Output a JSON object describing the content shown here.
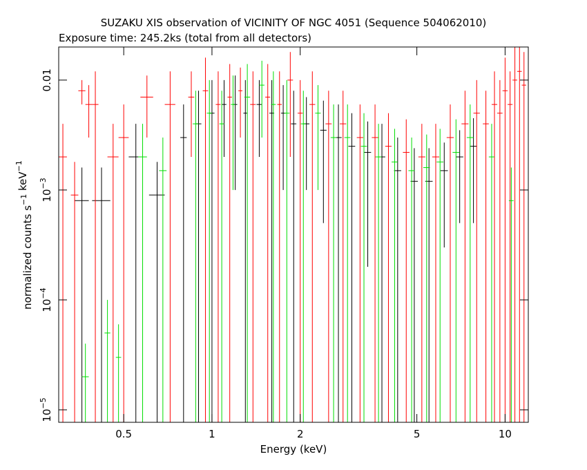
{
  "chart_data": {
    "type": "errorbar",
    "title": "SUZAKU XIS observation of VICINITY OF NGC 4051 (Sequence 504062010)",
    "subtitle": "Exposure time: 245.2ks (total from all detectors)",
    "xlabel": "Energy (keV)",
    "ylabel": [
      {
        "text": "normalized counts s",
        "sup": "−1"
      },
      {
        "text": " keV",
        "sup": "−1"
      }
    ],
    "log_x": true,
    "log_y": true,
    "xlim": [
      0.3,
      12
    ],
    "ylim": [
      7.7e-06,
      0.02
    ],
    "xticks": [
      0.5,
      1,
      2,
      5,
      10
    ],
    "yticks": [
      {
        "value": 0.01,
        "label": "0.01"
      },
      {
        "value": 0.001,
        "label": "10",
        "exponent": "−3"
      },
      {
        "value": 0.0001,
        "label": "10",
        "exponent": "−4"
      },
      {
        "value": 1e-05,
        "label": "10",
        "exponent": "−5"
      }
    ],
    "series": [
      {
        "color": "#000000",
        "x": [
          0.36,
          0.42,
          0.55,
          0.65,
          0.8,
          0.9,
          1.0,
          1.1,
          1.2,
          1.3,
          1.45,
          1.6,
          1.75,
          1.9,
          2.1,
          2.4,
          2.7,
          3.0,
          3.4,
          3.8,
          4.3,
          4.9,
          5.5,
          6.2,
          7.0,
          7.8
        ],
        "xerr": [
          0.02,
          0.03,
          0.03,
          0.04,
          0.02,
          0.02,
          0.02,
          0.02,
          0.02,
          0.02,
          0.03,
          0.03,
          0.03,
          0.04,
          0.05,
          0.06,
          0.07,
          0.08,
          0.09,
          0.1,
          0.12,
          0.14,
          0.16,
          0.18,
          0.2,
          0.22
        ],
        "values": [
          0.0008,
          0.0008,
          0.002,
          0.0009,
          0.003,
          0.004,
          0.005,
          0.006,
          0.006,
          0.005,
          0.006,
          0.005,
          0.005,
          0.004,
          0.004,
          0.0035,
          0.003,
          0.0025,
          0.0022,
          0.002,
          0.0015,
          0.0012,
          0.0012,
          0.0015,
          0.002,
          0.0025
        ],
        "errors": [
          0.0008,
          0.0008,
          0.002,
          0.0009,
          0.003,
          0.004,
          0.005,
          0.004,
          0.005,
          0.005,
          0.004,
          0.005,
          0.004,
          0.004,
          0.003,
          0.003,
          0.003,
          0.0025,
          0.002,
          0.002,
          0.0015,
          0.0012,
          0.0012,
          0.0012,
          0.0015,
          0.002
        ]
      },
      {
        "color": "#ff0000",
        "x": [
          0.31,
          0.34,
          0.36,
          0.38,
          0.4,
          0.46,
          0.5,
          0.6,
          0.72,
          0.85,
          0.95,
          1.05,
          1.15,
          1.25,
          1.38,
          1.55,
          1.7,
          1.85,
          2.0,
          2.2,
          2.5,
          2.8,
          3.2,
          3.6,
          4.0,
          4.6,
          5.2,
          5.8,
          6.5,
          7.3,
          8.0,
          8.6,
          9.2,
          9.6,
          10.0,
          10.4,
          10.8,
          11.2,
          11.6
        ],
        "xerr": [
          0.01,
          0.01,
          0.01,
          0.01,
          0.01,
          0.02,
          0.02,
          0.03,
          0.03,
          0.02,
          0.02,
          0.02,
          0.02,
          0.02,
          0.03,
          0.03,
          0.03,
          0.04,
          0.04,
          0.05,
          0.06,
          0.07,
          0.08,
          0.09,
          0.1,
          0.12,
          0.14,
          0.16,
          0.18,
          0.2,
          0.2,
          0.2,
          0.2,
          0.2,
          0.2,
          0.2,
          0.2,
          0.2,
          0.2
        ],
        "values": [
          0.002,
          0.0009,
          0.008,
          0.006,
          0.006,
          0.002,
          0.003,
          0.007,
          0.006,
          0.007,
          0.008,
          0.006,
          0.007,
          0.008,
          0.006,
          0.007,
          0.006,
          0.01,
          0.005,
          0.006,
          0.004,
          0.004,
          0.003,
          0.003,
          0.0025,
          0.0022,
          0.002,
          0.002,
          0.003,
          0.004,
          0.005,
          0.004,
          0.006,
          0.005,
          0.008,
          0.006,
          0.01,
          0.012,
          0.009
        ],
        "errors": [
          0.002,
          0.0009,
          0.002,
          0.003,
          0.006,
          0.002,
          0.003,
          0.004,
          0.006,
          0.005,
          0.008,
          0.006,
          0.007,
          0.005,
          0.006,
          0.007,
          0.006,
          0.008,
          0.005,
          0.006,
          0.004,
          0.004,
          0.003,
          0.003,
          0.0025,
          0.0022,
          0.002,
          0.002,
          0.003,
          0.004,
          0.005,
          0.004,
          0.006,
          0.005,
          0.008,
          0.006,
          0.01,
          0.012,
          0.009
        ]
      },
      {
        "color": "#00dd00",
        "x": [
          0.37,
          0.44,
          0.48,
          0.58,
          0.68,
          0.88,
          0.98,
          1.08,
          1.18,
          1.32,
          1.48,
          1.62,
          1.8,
          2.05,
          2.3,
          2.6,
          2.9,
          3.3,
          3.7,
          4.2,
          4.8,
          5.4,
          6.0,
          6.8,
          7.6,
          9.0,
          10.5
        ],
        "xerr": [
          0.01,
          0.01,
          0.01,
          0.02,
          0.02,
          0.02,
          0.02,
          0.02,
          0.02,
          0.03,
          0.03,
          0.03,
          0.04,
          0.04,
          0.05,
          0.06,
          0.07,
          0.08,
          0.09,
          0.1,
          0.12,
          0.14,
          0.16,
          0.18,
          0.2,
          0.2,
          0.2
        ],
        "values": [
          2e-05,
          5e-05,
          3e-05,
          0.002,
          0.0015,
          0.004,
          0.005,
          0.004,
          0.006,
          0.007,
          0.009,
          0.006,
          0.005,
          0.004,
          0.005,
          0.003,
          0.003,
          0.0025,
          0.002,
          0.0018,
          0.0015,
          0.0016,
          0.0018,
          0.0022,
          0.003,
          0.002,
          0.0008
        ],
        "errors": [
          2e-05,
          5e-05,
          3e-05,
          0.002,
          0.0015,
          0.004,
          0.005,
          0.004,
          0.005,
          0.007,
          0.006,
          0.006,
          0.005,
          0.004,
          0.004,
          0.003,
          0.003,
          0.0025,
          0.002,
          0.0018,
          0.0015,
          0.0016,
          0.0018,
          0.0022,
          0.003,
          0.002,
          0.0008
        ]
      }
    ]
  }
}
